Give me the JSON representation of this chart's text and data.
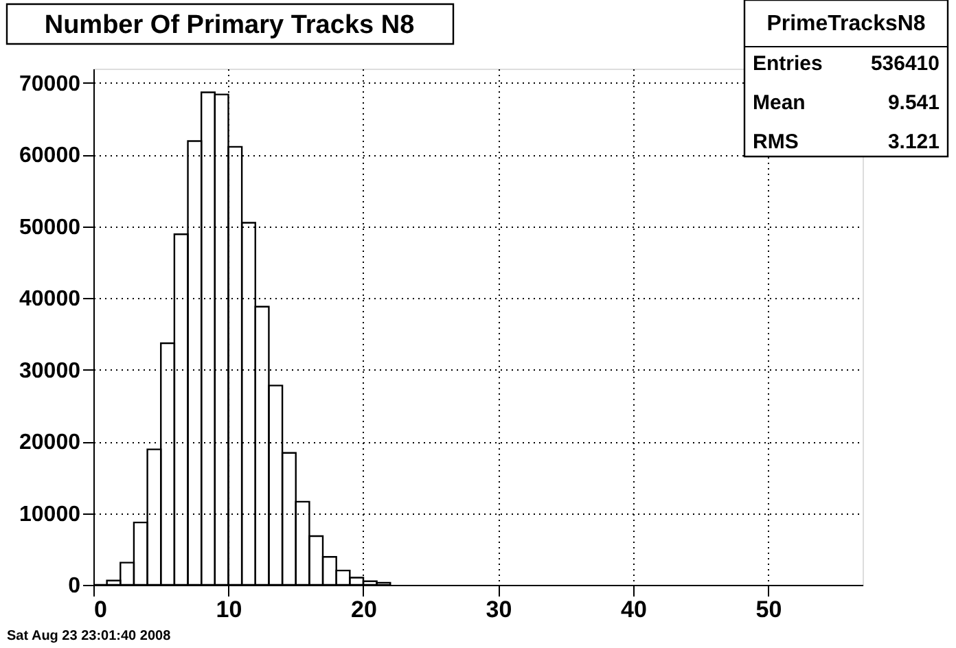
{
  "chart_data": {
    "type": "histogram",
    "title": "Number Of Primary Tracks N8",
    "bins": [
      0,
      1,
      2,
      3,
      4,
      5,
      6,
      7,
      8,
      9,
      10,
      11,
      12,
      13,
      14,
      15,
      16,
      17,
      18,
      19,
      20,
      21,
      22
    ],
    "values": [
      0,
      600,
      3100,
      8700,
      18900,
      33700,
      48900,
      61900,
      68700,
      68400,
      61100,
      50500,
      38800,
      27800,
      18400,
      11600,
      6800,
      3900,
      2000,
      1000,
      500,
      300
    ],
    "color": "#000000",
    "xlim": [
      0,
      57
    ],
    "xticks": [
      0,
      10,
      20,
      30,
      40,
      50
    ],
    "ylim": [
      0,
      72000
    ],
    "yticks": [
      0,
      10000,
      20000,
      30000,
      40000,
      50000,
      60000,
      70000
    ],
    "grid": true,
    "annotations": [
      "PrimeTracksN8",
      "Entries",
      "536410",
      "Mean",
      "9.541",
      "RMS",
      "3.121",
      "Sat Aug 23 23:01:40 2008"
    ]
  }
}
